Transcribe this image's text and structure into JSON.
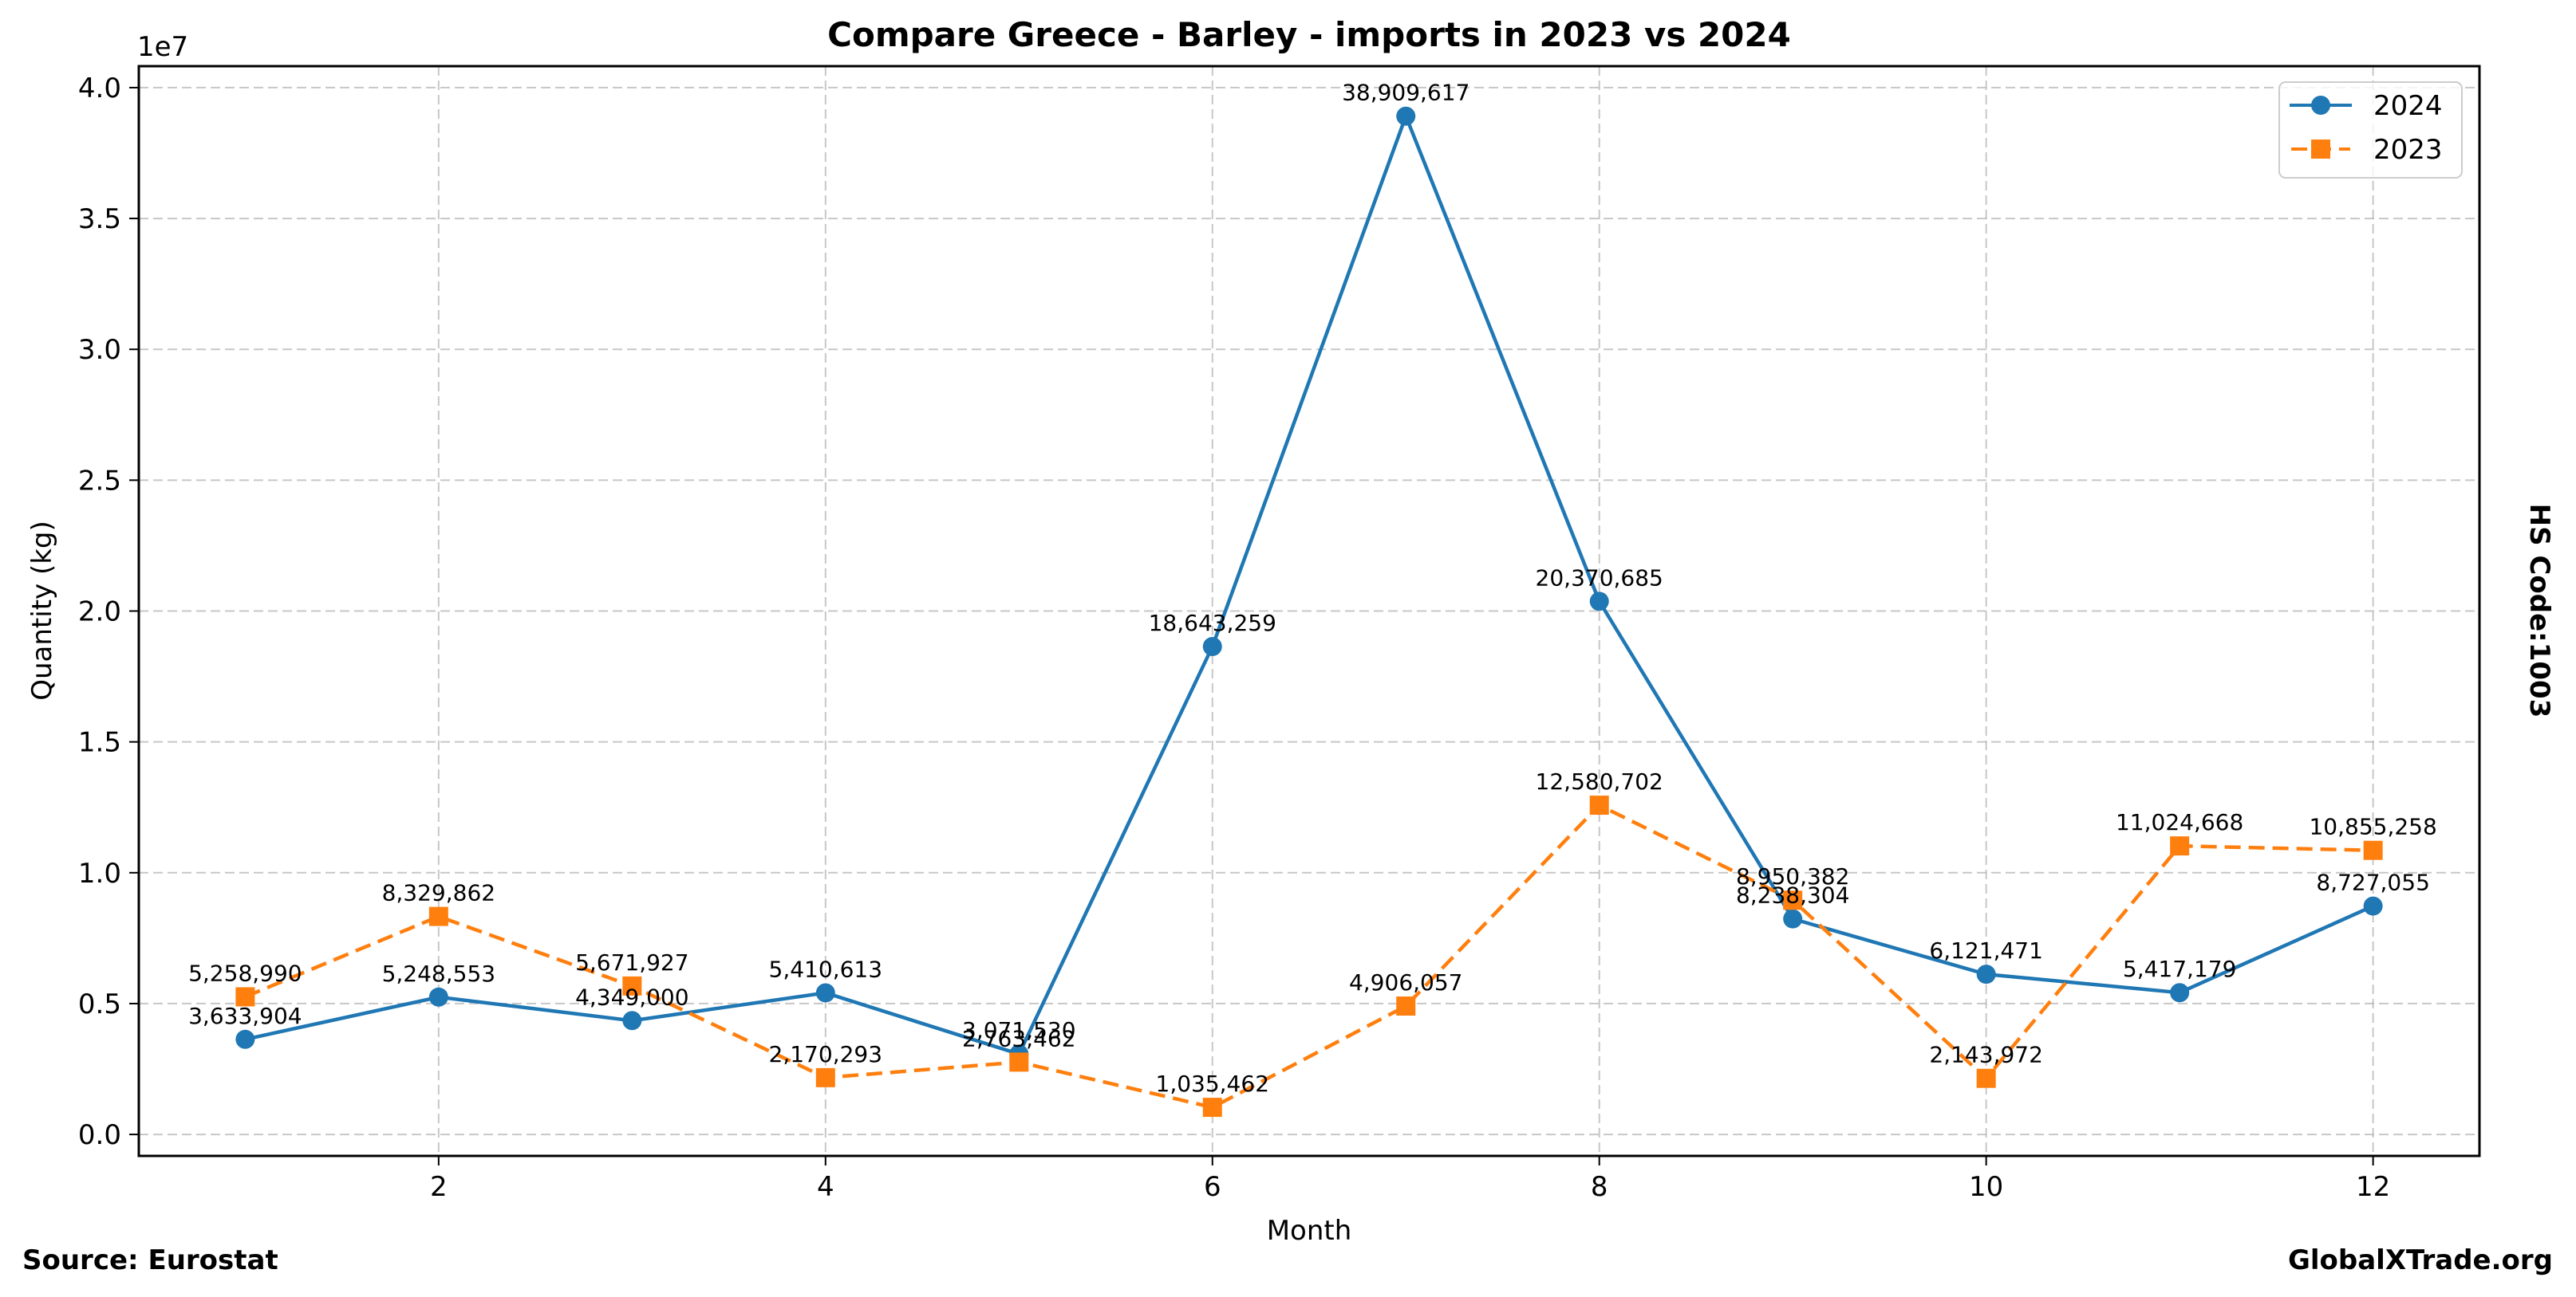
{
  "chart_data": {
    "type": "line",
    "title": "Compare Greece - Barley - imports in 2023 vs 2024",
    "xlabel": "Month",
    "ylabel": "Quantity (kg)",
    "y_offset_label": "1e7",
    "right_label": "HS Code:1003",
    "x": [
      1,
      2,
      3,
      4,
      5,
      6,
      7,
      8,
      9,
      10,
      11,
      12
    ],
    "xlim": [
      0.45,
      12.55
    ],
    "ylim": [
      -820000,
      40820000
    ],
    "xticks": [
      2,
      4,
      6,
      8,
      10,
      12
    ],
    "xtick_labels": [
      "2",
      "4",
      "6",
      "8",
      "10",
      "12"
    ],
    "yticks": [
      0,
      5000000,
      10000000,
      15000000,
      20000000,
      25000000,
      30000000,
      35000000,
      40000000
    ],
    "ytick_labels": [
      "0.0",
      "0.5",
      "1.0",
      "1.5",
      "2.0",
      "2.5",
      "3.0",
      "3.5",
      "4.0"
    ],
    "grid": true,
    "legend_position": "top-right",
    "series": [
      {
        "name": "2024",
        "color": "#1f77b4",
        "style": "solid",
        "marker": "circle",
        "values": [
          3633904,
          5248553,
          4349000,
          5410613,
          3071530,
          18643259,
          38909617,
          20370685,
          8238304,
          6121471,
          5417179,
          8727055
        ],
        "labels": [
          "3,633,904",
          "5,248,553",
          "4,349,000",
          "5,410,613",
          "3,071,530",
          "18,643,259",
          "38,909,617",
          "20,370,685",
          "8,238,304",
          "6,121,471",
          "5,417,179",
          "8,727,055"
        ]
      },
      {
        "name": "2023",
        "color": "#ff7f0e",
        "style": "dashed",
        "marker": "square",
        "values": [
          5258990,
          8329862,
          5671927,
          2170293,
          2763462,
          1035462,
          4906057,
          12580702,
          8950382,
          2143972,
          11024668,
          10855258
        ],
        "labels": [
          "5,258,990",
          "8,329,862",
          "5,671,927",
          "2,170,293",
          "2,763,462",
          "1,035,462",
          "4,906,057",
          "12,580,702",
          "8,950,382",
          "2,143,972",
          "11,024,668",
          "10,855,258"
        ]
      }
    ]
  },
  "footer": {
    "source": "Source: Eurostat",
    "brand": "GlobalXTrade.org"
  }
}
